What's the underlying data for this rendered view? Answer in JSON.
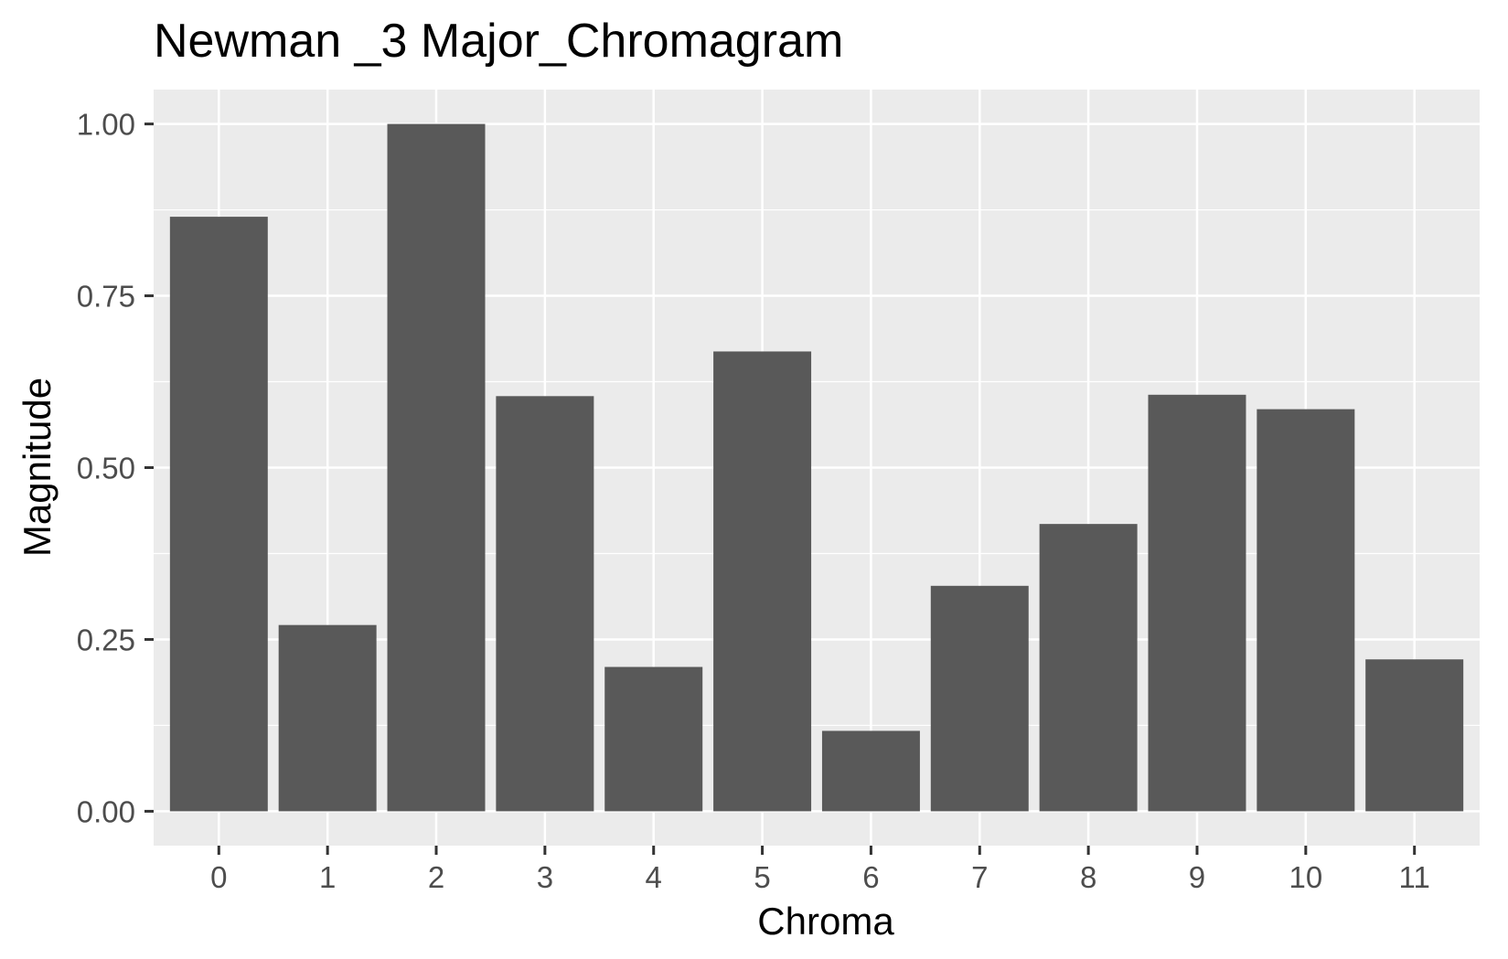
{
  "chart_data": {
    "type": "bar",
    "title": "Newman _3 Major_Chromagram",
    "xlabel": "Chroma",
    "ylabel": "Magnitude",
    "categories": [
      "0",
      "1",
      "2",
      "3",
      "4",
      "5",
      "6",
      "7",
      "8",
      "9",
      "10",
      "11"
    ],
    "values": [
      0.865,
      0.271,
      1.0,
      0.604,
      0.21,
      0.669,
      0.117,
      0.328,
      0.418,
      0.606,
      0.585,
      0.221
    ],
    "ylim": [
      -0.05,
      1.05
    ],
    "yticks": [
      0,
      0.25,
      0.5,
      0.75,
      1.0
    ],
    "ytick_labels": [
      "0.00",
      "0.25",
      "0.50",
      "0.75",
      "1.00"
    ],
    "grid": true,
    "colors": {
      "panel": "#ebebeb",
      "bar": "#595959",
      "gridline": "#ffffff",
      "tick": "#333333"
    }
  }
}
